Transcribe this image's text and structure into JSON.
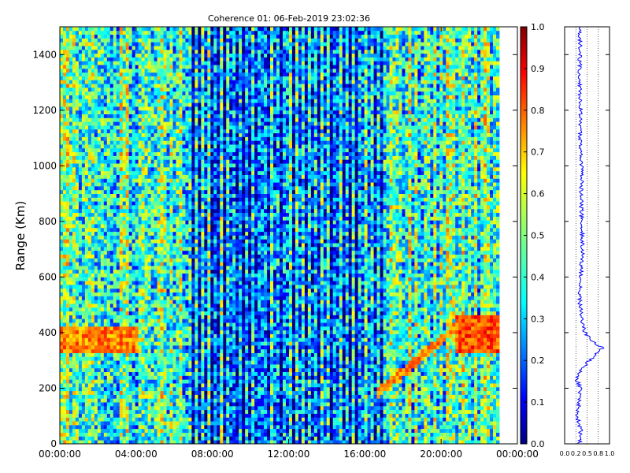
{
  "chart_data": [
    {
      "type": "heatmap",
      "title": "Coherence 01: 06-Feb-2019 23:02:36",
      "ylabel": "Range (Km)",
      "xlabel": "",
      "x_ticks": [
        "00:00:00",
        "04:00:00",
        "08:00:00",
        "12:00:00",
        "16:00:00",
        "20:00:00",
        "00:00:00"
      ],
      "x_range_hours": [
        0,
        24
      ],
      "data_extent_hours": [
        0,
        23.05
      ],
      "y_ticks": [
        0,
        200,
        400,
        600,
        800,
        1000,
        1200,
        1400
      ],
      "ylim": [
        0,
        1500
      ],
      "colormap": "jet",
      "colorbar": {
        "range": [
          0,
          1
        ],
        "ticks": [
          "0.0",
          "0.1",
          "0.2",
          "0.3",
          "0.4",
          "0.5",
          "0.6",
          "0.7",
          "0.8",
          "0.9",
          "1.0"
        ]
      },
      "features": [
        {
          "description": "high coherence band",
          "hours": [
            0,
            4
          ],
          "range_km": [
            320,
            420
          ],
          "value": 0.75
        },
        {
          "description": "high coherence band",
          "hours": [
            20.7,
            23
          ],
          "range_km": [
            320,
            460
          ],
          "value": 0.8
        },
        {
          "description": "rising streak",
          "hours": [
            16.5,
            21
          ],
          "range_km": [
            170,
            430
          ],
          "value": 0.75
        },
        {
          "description": "low coherence period",
          "hours": [
            6.8,
            17
          ],
          "value": 0.2
        }
      ]
    },
    {
      "type": "line",
      "xlim": [
        0,
        1
      ],
      "x_ticks": [
        "0.0",
        "0.2",
        "0.5",
        "0.8",
        "1.0"
      ],
      "ylim": [
        0,
        1500
      ],
      "grid": "vertical dotted",
      "series_color": "#0000ff",
      "profile": [
        {
          "y": 0,
          "x": 0.33
        },
        {
          "y": 50,
          "x": 0.36
        },
        {
          "y": 100,
          "x": 0.28
        },
        {
          "y": 150,
          "x": 0.33
        },
        {
          "y": 200,
          "x": 0.35
        },
        {
          "y": 240,
          "x": 0.25
        },
        {
          "y": 270,
          "x": 0.4
        },
        {
          "y": 300,
          "x": 0.55
        },
        {
          "y": 330,
          "x": 0.75
        },
        {
          "y": 345,
          "x": 0.84
        },
        {
          "y": 360,
          "x": 0.7
        },
        {
          "y": 380,
          "x": 0.55
        },
        {
          "y": 400,
          "x": 0.45
        },
        {
          "y": 450,
          "x": 0.38
        },
        {
          "y": 500,
          "x": 0.34
        },
        {
          "y": 600,
          "x": 0.36
        },
        {
          "y": 700,
          "x": 0.4
        },
        {
          "y": 800,
          "x": 0.38
        },
        {
          "y": 900,
          "x": 0.37
        },
        {
          "y": 1000,
          "x": 0.38
        },
        {
          "y": 1100,
          "x": 0.35
        },
        {
          "y": 1200,
          "x": 0.35
        },
        {
          "y": 1300,
          "x": 0.33
        },
        {
          "y": 1400,
          "x": 0.34
        },
        {
          "y": 1500,
          "x": 0.35
        }
      ]
    }
  ]
}
